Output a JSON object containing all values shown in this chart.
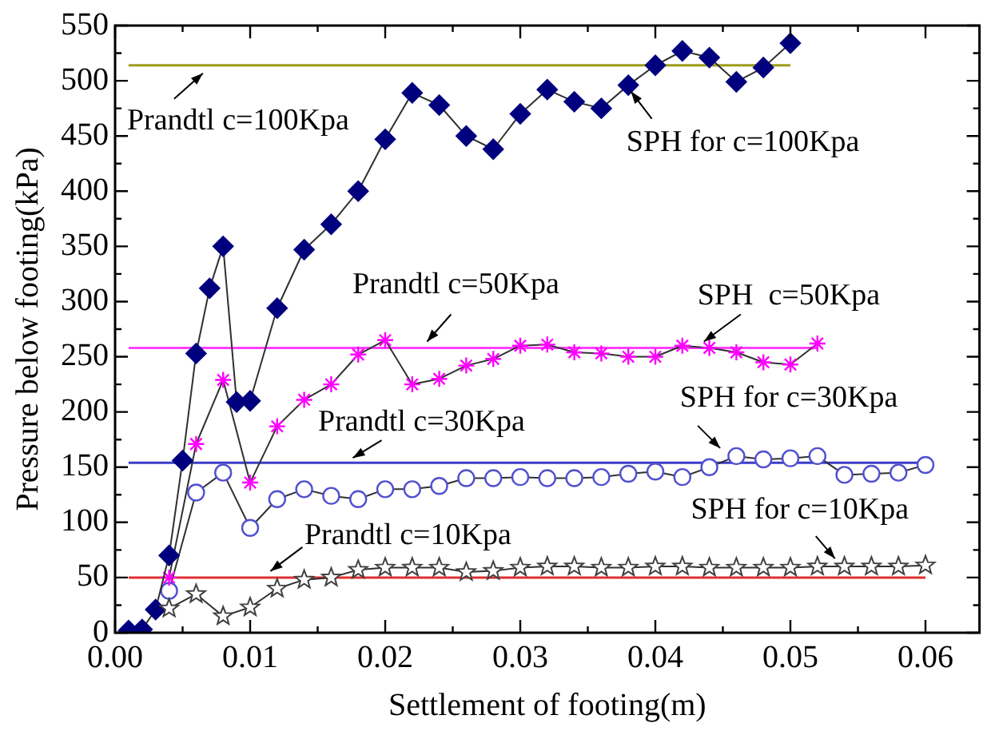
{
  "chart_data": {
    "type": "line",
    "xlabel": "Settlement of footing(m)",
    "ylabel": "Pressure below footing(kPa)",
    "xlim": [
      0,
      0.064
    ],
    "ylim": [
      0,
      550
    ],
    "xticks": [
      {
        "value": 0,
        "label": "0.00"
      },
      {
        "value": 0.005,
        "label": null
      },
      0.01,
      {
        "value": 0.015,
        "label": null
      },
      0.02,
      {
        "value": 0.025,
        "label": null
      },
      0.03,
      {
        "value": 0.035,
        "label": null
      },
      0.04,
      {
        "value": 0.045,
        "label": null
      },
      0.05,
      {
        "value": 0.055,
        "label": null
      },
      0.06
    ],
    "yticks": [
      0,
      {
        "value": 25,
        "label": null
      },
      50,
      {
        "value": 75,
        "label": null
      },
      100,
      {
        "value": 125,
        "label": null
      },
      150,
      {
        "value": 175,
        "label": null
      },
      200,
      {
        "value": 225,
        "label": null
      },
      250,
      {
        "value": 275,
        "label": null
      },
      300,
      {
        "value": 325,
        "label": null
      },
      350,
      {
        "value": 375,
        "label": null
      },
      400,
      {
        "value": 425,
        "label": null
      },
      450,
      {
        "value": 475,
        "label": null
      },
      500,
      {
        "value": 525,
        "label": null
      },
      550
    ],
    "grid": false,
    "legend": false,
    "series": [
      {
        "marker": "diamond",
        "color": "#00007f",
        "x": [
          0.001,
          0.002,
          0.003,
          0.004,
          0.005,
          0.006,
          0.007,
          0.008,
          0.009,
          0.01,
          0.012,
          0.014,
          0.016,
          0.018,
          0.02,
          0.022,
          0.024,
          0.026,
          0.028,
          0.03,
          0.032,
          0.034,
          0.036,
          0.038,
          0.04,
          0.042,
          0.044,
          0.046,
          0.048,
          0.05
        ],
        "values": [
          2,
          3,
          21,
          70,
          156,
          253,
          312,
          350,
          209,
          210,
          294,
          347,
          370,
          400,
          447,
          489,
          478,
          450,
          438,
          470,
          492,
          481,
          475,
          496,
          514,
          527,
          521,
          499,
          512,
          534
        ]
      },
      {
        "marker": "cross",
        "color": "#ff00ff",
        "x": [
          0.004,
          0.006,
          0.008,
          0.01,
          0.012,
          0.014,
          0.016,
          0.018,
          0.02,
          0.022,
          0.024,
          0.026,
          0.028,
          0.03,
          0.032,
          0.034,
          0.036,
          0.038,
          0.04,
          0.042,
          0.044,
          0.046,
          0.048,
          0.05,
          0.052
        ],
        "values": [
          50,
          171,
          229,
          136,
          187,
          211,
          225,
          252,
          265,
          225,
          230,
          242,
          248,
          260,
          261,
          254,
          253,
          250,
          250,
          260,
          258,
          254,
          245,
          243,
          262
        ]
      },
      {
        "marker": "circle",
        "color": "#5050d0",
        "x": [
          0.004,
          0.006,
          0.008,
          0.01,
          0.012,
          0.014,
          0.016,
          0.018,
          0.02,
          0.022,
          0.024,
          0.026,
          0.028,
          0.03,
          0.032,
          0.034,
          0.036,
          0.038,
          0.04,
          0.042,
          0.044,
          0.046,
          0.048,
          0.05,
          0.052,
          0.054,
          0.056,
          0.058,
          0.06
        ],
        "values": [
          38,
          127,
          145,
          95,
          121,
          130,
          124,
          121,
          130,
          130,
          133,
          140,
          140,
          141,
          140,
          140,
          141,
          144,
          146,
          141,
          150,
          160,
          157,
          158,
          160,
          143,
          144,
          145,
          152
        ]
      },
      {
        "marker": "star",
        "color": "#404040",
        "x": [
          0.004,
          0.006,
          0.008,
          0.01,
          0.012,
          0.014,
          0.016,
          0.018,
          0.02,
          0.022,
          0.024,
          0.026,
          0.028,
          0.03,
          0.032,
          0.034,
          0.036,
          0.038,
          0.04,
          0.042,
          0.044,
          0.046,
          0.048,
          0.05,
          0.052,
          0.054,
          0.056,
          0.058,
          0.06
        ],
        "values": [
          22,
          35,
          15,
          23,
          40,
          48,
          50,
          57,
          59,
          59,
          59,
          55,
          56,
          59,
          60,
          60,
          59,
          59,
          60,
          60,
          59,
          59,
          59,
          59,
          60,
          60,
          60,
          60,
          61
        ]
      },
      {
        "marker": "none",
        "color": "#9c9c1c",
        "x": [
          0.001,
          0.05
        ],
        "values": [
          514,
          514
        ]
      },
      {
        "marker": "none",
        "color": "#ff40ff",
        "x": [
          0.001,
          0.052
        ],
        "values": [
          258,
          258
        ]
      },
      {
        "marker": "none",
        "color": "#3c3cc8",
        "x": [
          0.001,
          0.06
        ],
        "values": [
          154,
          154
        ]
      },
      {
        "marker": "none",
        "color": "#e03030",
        "x": [
          0.001,
          0.06
        ],
        "values": [
          50,
          50
        ]
      }
    ],
    "annotations": [
      {
        "text": "Prandtl c=100Kpa",
        "x": 0.0065,
        "y": 514
      },
      {
        "text": "SPH for c=100Kpa",
        "x": 0.0382,
        "y": 496
      },
      {
        "text": "Prandtl c=50Kpa",
        "x": 0.0231,
        "y": 258
      },
      {
        "text": "SPH  c=50Kpa",
        "x": 0.0436,
        "y": 258
      },
      {
        "text": "Prandtl c=30Kpa",
        "x": 0.0176,
        "y": 154
      },
      {
        "text": "SPH for c=30Kpa",
        "x": 0.0448,
        "y": 160
      },
      {
        "text": "Prandtl c=10Kpa",
        "x": 0.0115,
        "y": 50
      },
      {
        "text": "SPH for c=10Kpa",
        "x": 0.0533,
        "y": 60
      }
    ]
  }
}
